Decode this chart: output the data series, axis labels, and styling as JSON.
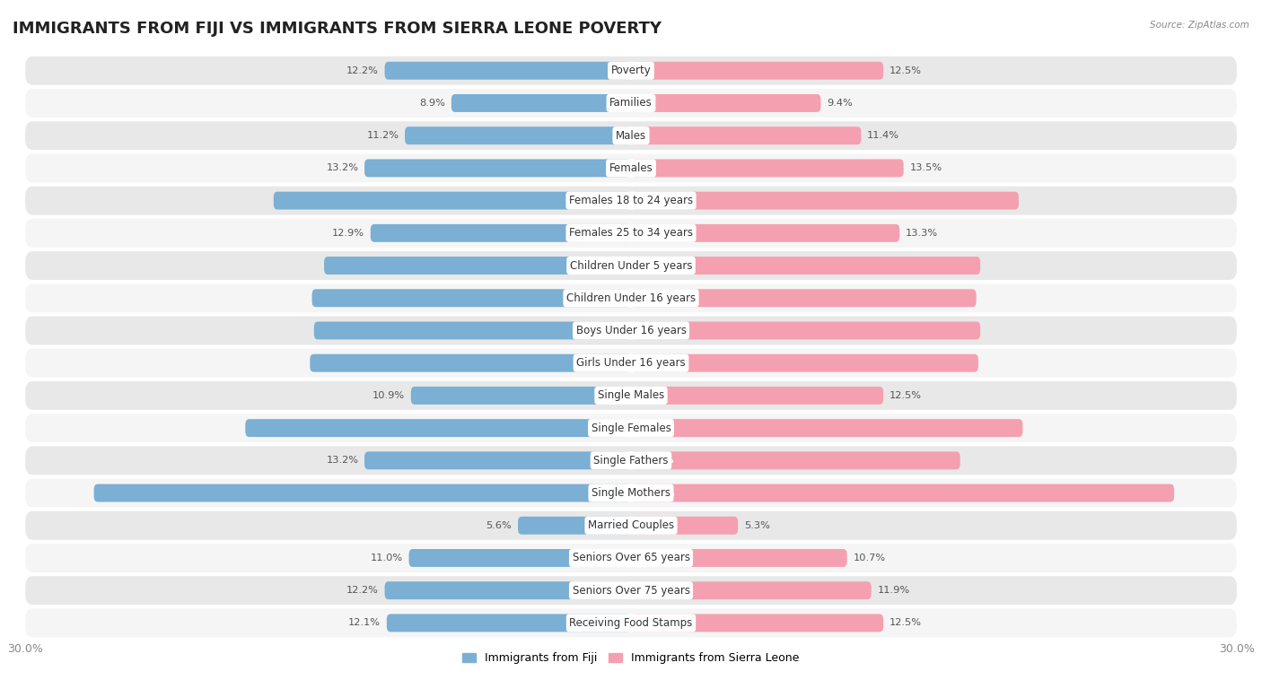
{
  "title": "IMMIGRANTS FROM FIJI VS IMMIGRANTS FROM SIERRA LEONE POVERTY",
  "source": "Source: ZipAtlas.com",
  "categories": [
    "Poverty",
    "Families",
    "Males",
    "Females",
    "Females 18 to 24 years",
    "Females 25 to 34 years",
    "Children Under 5 years",
    "Children Under 16 years",
    "Boys Under 16 years",
    "Girls Under 16 years",
    "Single Males",
    "Single Females",
    "Single Fathers",
    "Single Mothers",
    "Married Couples",
    "Seniors Over 65 years",
    "Seniors Over 75 years",
    "Receiving Food Stamps"
  ],
  "fiji_values": [
    12.2,
    8.9,
    11.2,
    13.2,
    17.7,
    12.9,
    15.2,
    15.8,
    15.7,
    15.9,
    10.9,
    19.1,
    13.2,
    26.6,
    5.6,
    11.0,
    12.2,
    12.1
  ],
  "sierra_leone_values": [
    12.5,
    9.4,
    11.4,
    13.5,
    19.2,
    13.3,
    17.3,
    17.1,
    17.3,
    17.2,
    12.5,
    19.4,
    16.3,
    26.9,
    5.3,
    10.7,
    11.9,
    12.5
  ],
  "fiji_color": "#7bafd4",
  "sierra_leone_color": "#f4a0b0",
  "fiji_label": "Immigrants from Fiji",
  "sierra_leone_label": "Immigrants from Sierra Leone",
  "xlim": 30.0,
  "bar_height": 0.55,
  "bg_color": "#ffffff",
  "row_color_even": "#e8e8e8",
  "row_color_odd": "#f5f5f5",
  "title_fontsize": 13,
  "label_fontsize": 8.5,
  "value_fontsize": 8.2,
  "axis_label_fontsize": 9,
  "inside_thresh_fiji": 15.0,
  "inside_thresh_sl": 15.0
}
